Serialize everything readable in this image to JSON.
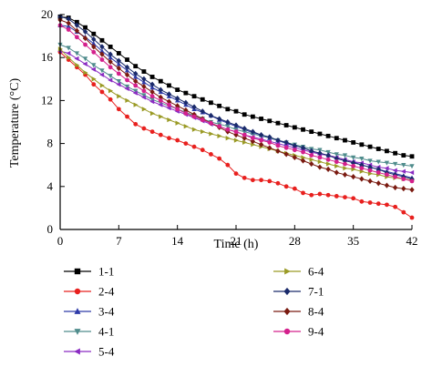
{
  "chart_data": {
    "type": "line",
    "xlabel": "Time (h)",
    "ylabel": "Temperature (°C)",
    "xlim": [
      0,
      42
    ],
    "ylim": [
      0,
      20
    ],
    "xticks": [
      0,
      7,
      14,
      21,
      28,
      35,
      42
    ],
    "yticks": [
      0,
      4,
      8,
      12,
      16,
      20
    ],
    "grid": false,
    "legend_position": "bottom",
    "x": [
      0,
      1,
      2,
      3,
      4,
      5,
      6,
      7,
      8,
      9,
      10,
      11,
      12,
      13,
      14,
      15,
      16,
      17,
      18,
      19,
      20,
      21,
      22,
      23,
      24,
      25,
      26,
      27,
      28,
      29,
      30,
      31,
      32,
      33,
      34,
      35,
      36,
      37,
      38,
      39,
      40,
      41,
      42
    ],
    "series": [
      {
        "name": "1-1",
        "marker": "square",
        "color": "#000000",
        "values": [
          19.8,
          19.7,
          19.3,
          18.8,
          18.2,
          17.6,
          17.0,
          16.4,
          15.8,
          15.2,
          14.7,
          14.2,
          13.8,
          13.4,
          13.0,
          12.7,
          12.4,
          12.1,
          11.8,
          11.5,
          11.2,
          11.0,
          10.7,
          10.5,
          10.3,
          10.1,
          9.9,
          9.7,
          9.5,
          9.3,
          9.1,
          8.9,
          8.7,
          8.5,
          8.3,
          8.1,
          7.9,
          7.7,
          7.5,
          7.3,
          7.1,
          6.9,
          6.8
        ]
      },
      {
        "name": "2-4",
        "marker": "circle",
        "color": "#e8201e",
        "values": [
          16.5,
          15.8,
          15.1,
          14.4,
          13.5,
          12.8,
          12.1,
          11.2,
          10.5,
          9.8,
          9.4,
          9.1,
          8.8,
          8.5,
          8.3,
          8.0,
          7.7,
          7.4,
          7.0,
          6.6,
          6.0,
          5.2,
          4.8,
          4.6,
          4.6,
          4.5,
          4.3,
          4.0,
          3.8,
          3.4,
          3.2,
          3.3,
          3.2,
          3.1,
          3.0,
          2.9,
          2.6,
          2.5,
          2.4,
          2.3,
          2.1,
          1.6,
          1.1
        ]
      },
      {
        "name": "3-4",
        "marker": "triangle-up",
        "color": "#2e3aa8",
        "values": [
          19.0,
          18.9,
          18.4,
          17.9,
          17.3,
          16.6,
          16.0,
          15.4,
          14.8,
          14.2,
          13.7,
          13.2,
          12.8,
          12.4,
          12.0,
          11.6,
          11.2,
          10.9,
          10.6,
          10.2,
          9.9,
          9.6,
          9.3,
          9.0,
          8.8,
          8.5,
          8.3,
          8.0,
          7.8,
          7.6,
          7.3,
          7.1,
          6.9,
          6.7,
          6.5,
          6.3,
          6.0,
          5.8,
          5.6,
          5.4,
          5.2,
          5.0,
          4.8
        ]
      },
      {
        "name": "4-1",
        "marker": "triangle-down",
        "color": "#4f8c8c",
        "values": [
          17.2,
          16.9,
          16.4,
          15.9,
          15.3,
          14.8,
          14.3,
          13.8,
          13.3,
          12.9,
          12.5,
          12.1,
          11.8,
          11.5,
          11.2,
          10.9,
          10.6,
          10.3,
          10.0,
          9.8,
          9.6,
          9.3,
          9.1,
          8.9,
          8.7,
          8.5,
          8.3,
          8.1,
          7.9,
          7.7,
          7.5,
          7.4,
          7.2,
          7.0,
          6.9,
          6.7,
          6.6,
          6.4,
          6.3,
          6.2,
          6.1,
          6.0,
          5.9
        ]
      },
      {
        "name": "5-4",
        "marker": "triangle-left",
        "color": "#8a2bc2",
        "values": [
          16.6,
          16.4,
          15.9,
          15.4,
          14.9,
          14.4,
          13.9,
          13.5,
          13.1,
          12.7,
          12.3,
          11.9,
          11.6,
          11.3,
          11.0,
          10.7,
          10.4,
          10.1,
          9.8,
          9.6,
          9.3,
          9.1,
          8.8,
          8.6,
          8.4,
          8.2,
          8.0,
          7.8,
          7.6,
          7.4,
          7.2,
          7.0,
          6.9,
          6.7,
          6.5,
          6.3,
          6.2,
          6.0,
          5.8,
          5.7,
          5.5,
          5.4,
          5.3
        ]
      },
      {
        "name": "6-4",
        "marker": "triangle-right",
        "color": "#9a9a25",
        "values": [
          16.8,
          16.0,
          15.3,
          14.6,
          14.0,
          13.4,
          12.9,
          12.4,
          12.0,
          11.6,
          11.2,
          10.8,
          10.5,
          10.2,
          9.9,
          9.6,
          9.3,
          9.1,
          8.9,
          8.7,
          8.5,
          8.3,
          8.1,
          7.9,
          7.7,
          7.5,
          7.3,
          7.1,
          6.9,
          6.7,
          6.5,
          6.3,
          6.1,
          5.9,
          5.7,
          5.6,
          5.4,
          5.2,
          5.1,
          4.9,
          4.8,
          4.7,
          4.6
        ]
      },
      {
        "name": "7-1",
        "marker": "diamond",
        "color": "#1a2a6b",
        "values": [
          19.8,
          19.6,
          19.0,
          18.4,
          17.7,
          17.0,
          16.3,
          15.7,
          15.1,
          14.5,
          14.0,
          13.5,
          13.0,
          12.6,
          12.2,
          11.8,
          11.4,
          11.0,
          10.6,
          10.3,
          10.0,
          9.7,
          9.4,
          9.1,
          8.8,
          8.6,
          8.3,
          8.1,
          7.8,
          7.6,
          7.3,
          7.1,
          6.9,
          6.6,
          6.4,
          6.2,
          6.0,
          5.8,
          5.6,
          5.3,
          5.1,
          4.9,
          4.7
        ]
      },
      {
        "name": "8-4",
        "marker": "diamond",
        "color": "#7a1a10",
        "values": [
          19.5,
          19.2,
          18.5,
          17.8,
          17.0,
          16.3,
          15.6,
          15.0,
          14.4,
          13.8,
          13.3,
          12.8,
          12.3,
          11.9,
          11.5,
          11.1,
          10.7,
          10.3,
          9.9,
          9.5,
          9.1,
          8.8,
          8.5,
          8.2,
          7.9,
          7.6,
          7.3,
          7.0,
          6.7,
          6.4,
          6.1,
          5.8,
          5.6,
          5.3,
          5.1,
          4.9,
          4.7,
          4.5,
          4.3,
          4.1,
          3.9,
          3.8,
          3.7
        ]
      },
      {
        "name": "9-4",
        "marker": "circle",
        "color": "#d4208c",
        "values": [
          19.0,
          18.6,
          17.9,
          17.2,
          16.5,
          15.8,
          15.1,
          14.5,
          13.9,
          13.4,
          12.9,
          12.4,
          12.0,
          11.6,
          11.2,
          10.8,
          10.5,
          10.2,
          9.9,
          9.6,
          9.3,
          9.1,
          8.8,
          8.5,
          8.3,
          8.1,
          7.8,
          7.6,
          7.4,
          7.2,
          6.9,
          6.7,
          6.5,
          6.3,
          6.1,
          5.9,
          5.7,
          5.5,
          5.3,
          5.1,
          4.9,
          4.7,
          4.5
        ]
      }
    ]
  }
}
